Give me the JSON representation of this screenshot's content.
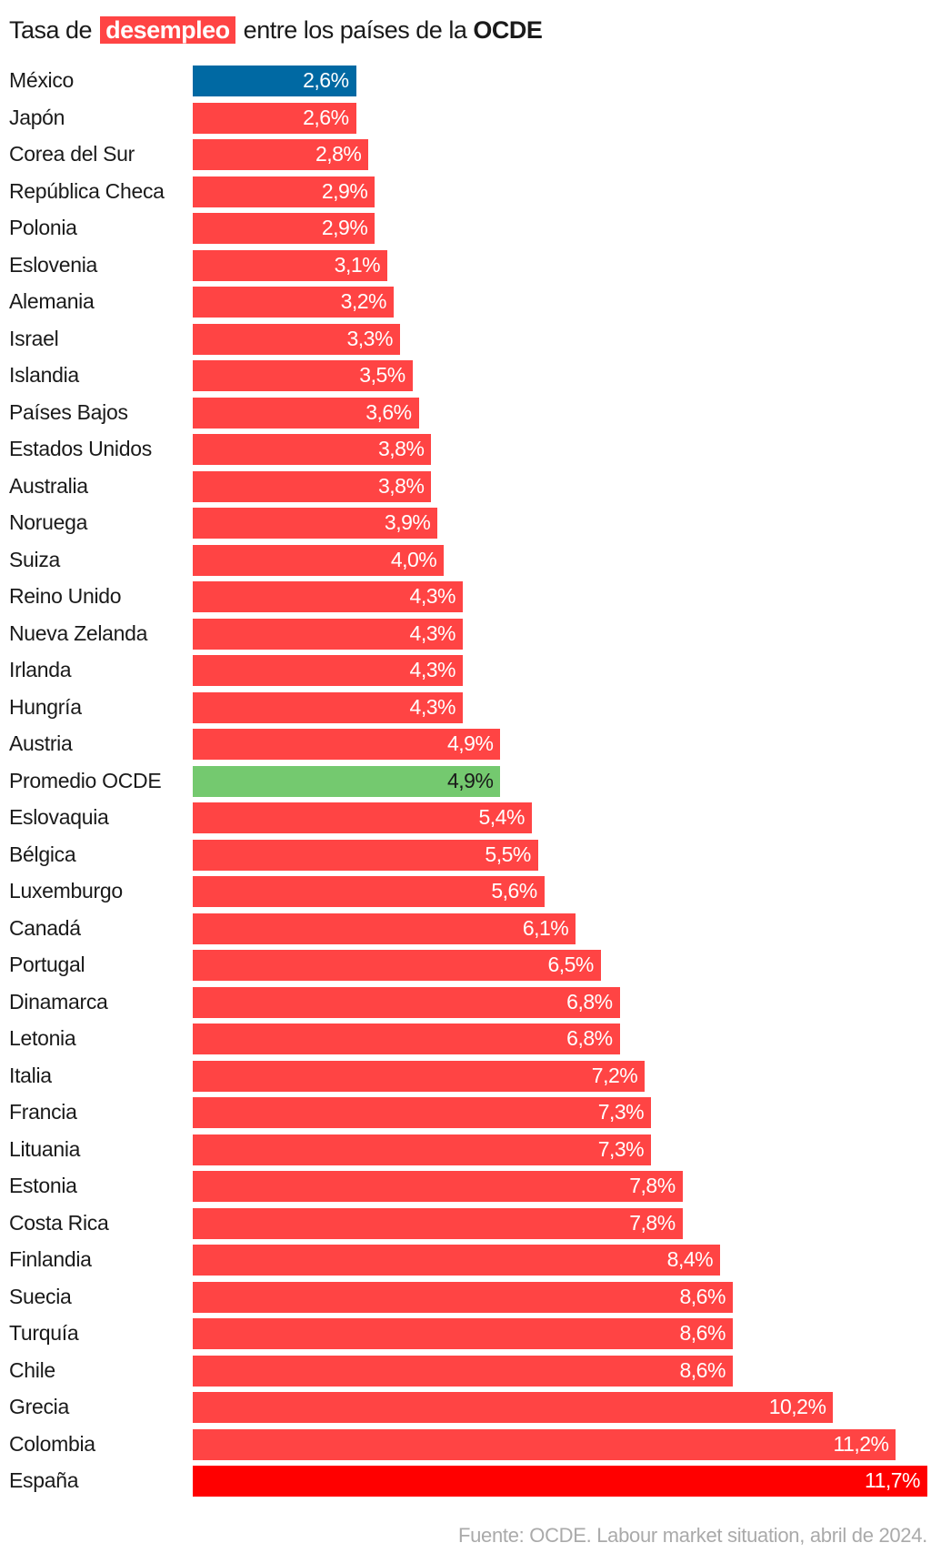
{
  "title": {
    "part1": "Tasa de",
    "highlight": "desempleo",
    "part2": "entre los países de la",
    "bold": "OCDE"
  },
  "source": "Fuente: OCDE. Labour market situation, abril de 2024.",
  "colors": {
    "default": "#ff4444",
    "mexico": "#0069a3",
    "average": "#74c96f",
    "spain": "#ff0000"
  },
  "chart_data": {
    "type": "bar",
    "orientation": "horizontal",
    "title": "Tasa de desempleo entre los países de la OCDE",
    "xlim": [
      0,
      11.7
    ],
    "grid": false,
    "categories": [
      "México",
      "Japón",
      "Corea del Sur",
      "República Checa",
      "Polonia",
      "Eslovenia",
      "Alemania",
      "Israel",
      "Islandia",
      "Países Bajos",
      "Estados Unidos",
      "Australia",
      "Noruega",
      "Suiza",
      "Reino Unido",
      "Nueva Zelanda",
      "Irlanda",
      "Hungría",
      "Austria",
      "Promedio OCDE",
      "Eslovaquia",
      "Bélgica",
      "Luxemburgo",
      "Canadá",
      "Portugal",
      "Dinamarca",
      "Letonia",
      "Italia",
      "Francia",
      "Lituania",
      "Estonia",
      "Costa Rica",
      "Finlandia",
      "Suecia",
      "Turquía",
      "Chile",
      "Grecia",
      "Colombia",
      "España"
    ],
    "values": [
      2.6,
      2.6,
      2.8,
      2.9,
      2.9,
      3.1,
      3.2,
      3.3,
      3.5,
      3.6,
      3.8,
      3.8,
      3.9,
      4.0,
      4.3,
      4.3,
      4.3,
      4.3,
      4.9,
      4.9,
      5.4,
      5.5,
      5.6,
      6.1,
      6.5,
      6.8,
      6.8,
      7.2,
      7.3,
      7.3,
      7.8,
      7.8,
      8.4,
      8.6,
      8.6,
      8.6,
      10.2,
      11.2,
      11.7
    ],
    "labels": [
      "2,6%",
      "2,6%",
      "2,8%",
      "2,9%",
      "2,9%",
      "3,1%",
      "3,2%",
      "3,3%",
      "3,5%",
      "3,6%",
      "3,8%",
      "3,8%",
      "3,9%",
      "4,0%",
      "4,3%",
      "4,3%",
      "4,3%",
      "4,3%",
      "4,9%",
      "4,9%",
      "5,4%",
      "5,5%",
      "5,6%",
      "6,1%",
      "6,5%",
      "6,8%",
      "6,8%",
      "7,2%",
      "7,3%",
      "7,3%",
      "7,8%",
      "7,8%",
      "8,4%",
      "8,6%",
      "8,6%",
      "8,6%",
      "10,2%",
      "11,2%",
      "11,7%"
    ]
  }
}
